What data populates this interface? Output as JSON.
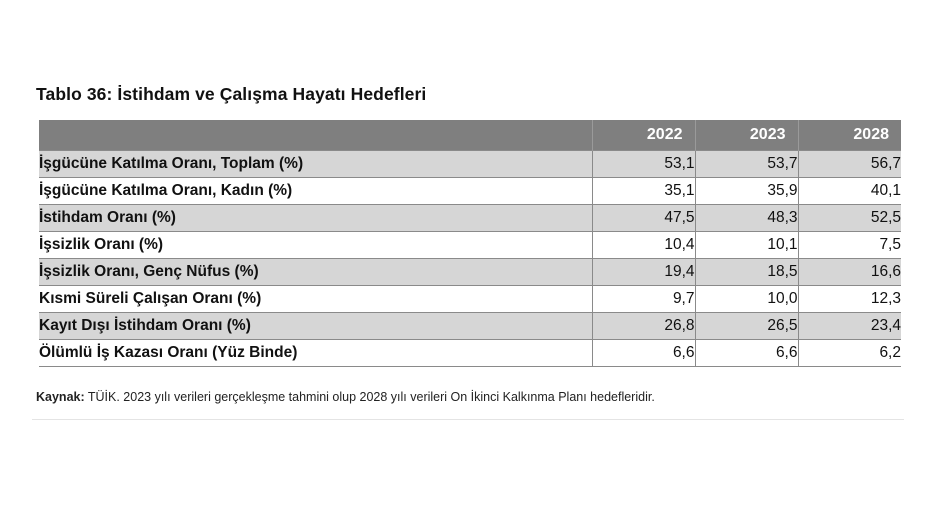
{
  "title": "Tablo 36: İstihdam ve Çalışma Hayatı Hedefleri",
  "columns": [
    "2022",
    "2023",
    "2028"
  ],
  "rows": [
    {
      "label": "İşgücüne Katılma Oranı, Toplam (%)",
      "values": [
        "53,1",
        "53,7",
        "56,7"
      ]
    },
    {
      "label": "İşgücüne Katılma Oranı, Kadın (%)",
      "values": [
        "35,1",
        "35,9",
        "40,1"
      ]
    },
    {
      "label": "İstihdam Oranı (%)",
      "values": [
        "47,5",
        "48,3",
        "52,5"
      ]
    },
    {
      "label": "İşsizlik Oranı (%)",
      "values": [
        "10,4",
        "10,1",
        "7,5"
      ]
    },
    {
      "label": "İşsizlik Oranı, Genç Nüfus (%)",
      "values": [
        "19,4",
        "18,5",
        "16,6"
      ]
    },
    {
      "label": "Kısmi Süreli Çalışan Oranı (%)",
      "values": [
        "9,7",
        "10,0",
        "12,3"
      ]
    },
    {
      "label": "Kayıt Dışı İstihdam Oranı (%)",
      "values": [
        "26,8",
        "26,5",
        "23,4"
      ]
    },
    {
      "label": "Ölümlü İş Kazası Oranı (Yüz Binde)",
      "values": [
        "6,6",
        "6,6",
        "6,2"
      ]
    }
  ],
  "source": {
    "label": "Kaynak:",
    "text": " TÜİK. 2023 yılı verileri gerçekleşme tahmini olup 2028 yılı verileri On İkinci Kalkınma Planı hedefleridir."
  },
  "colors": {
    "header_bg": "#7f7f7f",
    "shaded_row": "#d6d6d6",
    "plain_row": "#ffffff"
  }
}
